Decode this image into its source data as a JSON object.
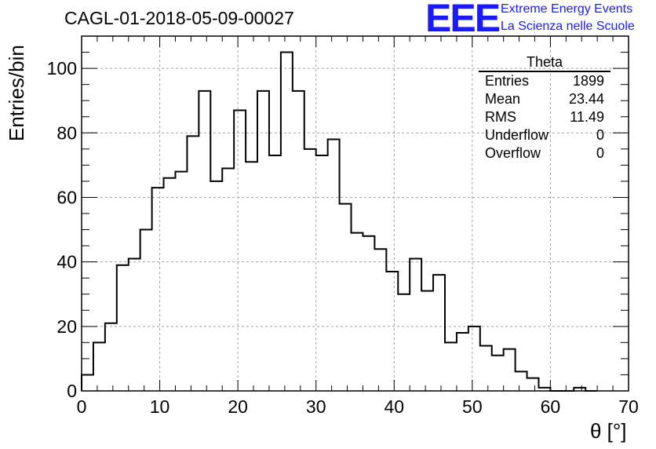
{
  "chart_data": {
    "type": "bar",
    "title": "CAGL-01-2018-05-09-00027",
    "xlabel": "θ [°]",
    "ylabel": "Entries/bin",
    "xlim": [
      0,
      70
    ],
    "ylim": [
      0,
      110
    ],
    "grid": true,
    "bin_width": 1.5,
    "bin_values": [
      5,
      15,
      21,
      39,
      41,
      50,
      63,
      66,
      68,
      79,
      93,
      65,
      69,
      87,
      71,
      93,
      73,
      105,
      93,
      75,
      73,
      78,
      58,
      49,
      48,
      44,
      37,
      30,
      41,
      31,
      36,
      15,
      18,
      20,
      14,
      11,
      13,
      6,
      4,
      1,
      0,
      0,
      1,
      0
    ],
    "xticks": [
      "0",
      "10",
      "20",
      "30",
      "40",
      "50",
      "60",
      "70"
    ],
    "yticks": [
      "0",
      "20",
      "40",
      "60",
      "80",
      "100"
    ],
    "stats": {
      "title": "Theta",
      "rows": [
        {
          "label": "Entries",
          "value": "1899"
        },
        {
          "label": "Mean",
          "value": "23.44"
        },
        {
          "label": "RMS",
          "value": "11.49"
        },
        {
          "label": "Underflow",
          "value": "0"
        },
        {
          "label": "Overflow",
          "value": "0"
        }
      ]
    }
  },
  "logo": {
    "mark": "EEE",
    "line1": "Extreme Energy Events",
    "line2": "La Scienza nelle Scuole",
    "color": "#1a1aff"
  }
}
